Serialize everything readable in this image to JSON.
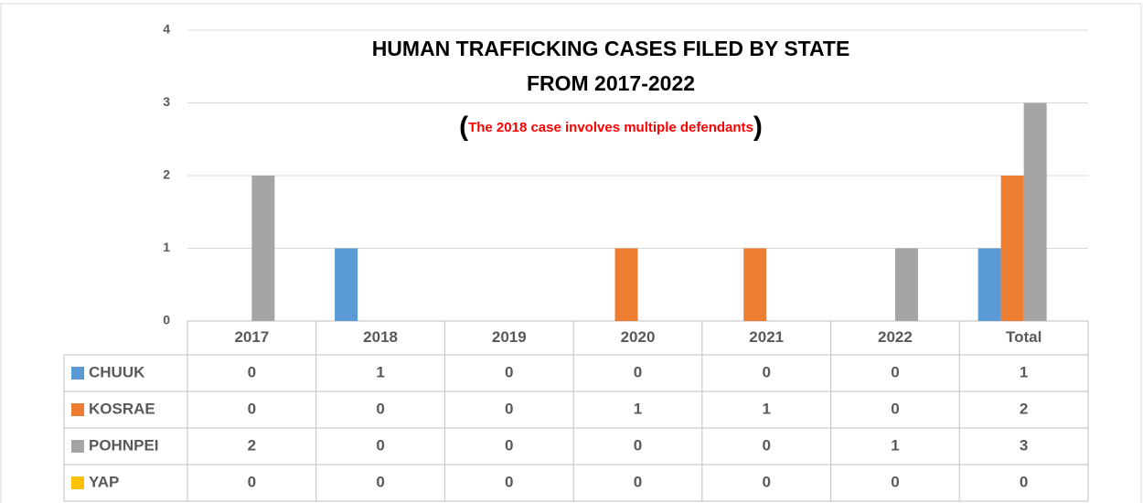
{
  "chart_data": {
    "type": "bar",
    "title": [
      "HUMAN TRAFFICKING CASES FILED BY STATE",
      "FROM 2017-2022"
    ],
    "subtitle": "(The 2018 case involves multiple defendants)",
    "categories": [
      "2017",
      "2018",
      "2019",
      "2020",
      "2021",
      "2022",
      "Total"
    ],
    "series": [
      {
        "name": "CHUUK",
        "color": "#5b9bd5",
        "values": [
          0,
          1,
          0,
          0,
          0,
          0,
          1
        ]
      },
      {
        "name": "KOSRAE",
        "color": "#ed7d31",
        "values": [
          0,
          0,
          0,
          1,
          1,
          0,
          2
        ]
      },
      {
        "name": "POHNPEI",
        "color": "#a5a5a5",
        "values": [
          2,
          0,
          0,
          0,
          0,
          1,
          3
        ]
      },
      {
        "name": "YAP",
        "color": "#ffc000",
        "values": [
          0,
          0,
          0,
          0,
          0,
          0,
          0
        ]
      }
    ],
    "ylim": [
      0,
      4
    ],
    "yticks": [
      0,
      1,
      2,
      3,
      4
    ],
    "grid": true
  }
}
